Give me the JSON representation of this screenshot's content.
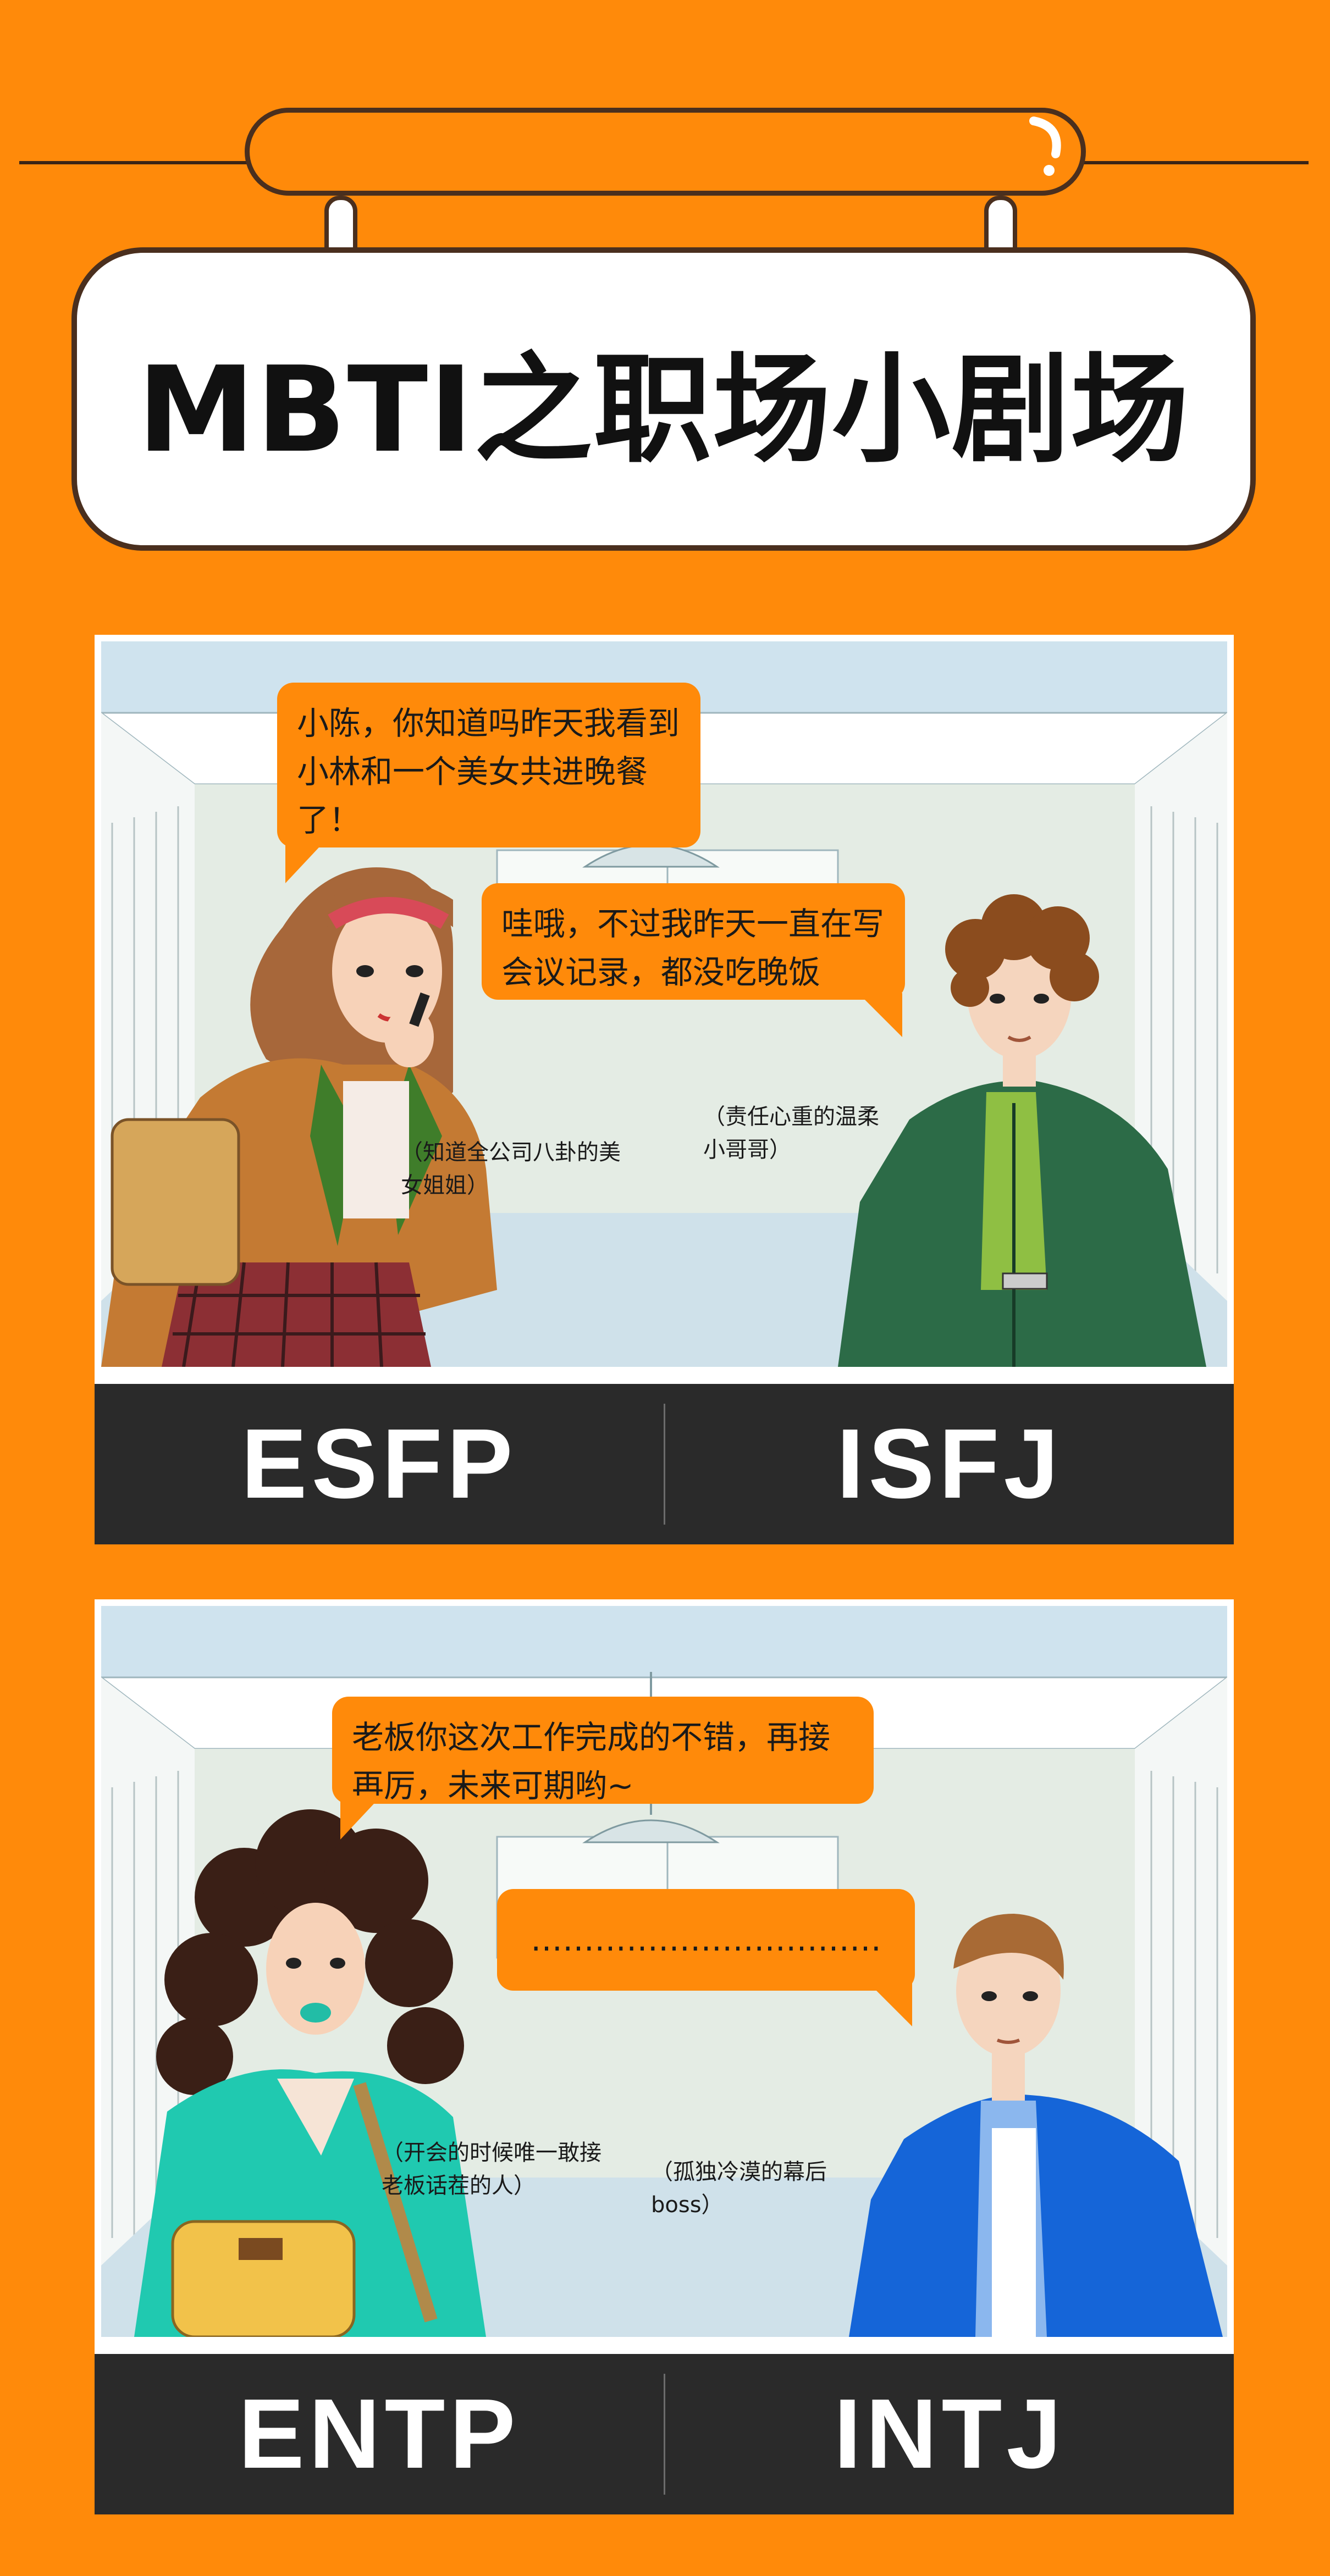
{
  "header": {
    "title": "MBTI之职场小剧场"
  },
  "colors": {
    "background": "#ff8a0a",
    "bubble": "#ff8a0a",
    "type_bar": "#2a2a2a",
    "outline": "#4a2f1e"
  },
  "panels": [
    {
      "bubbles": [
        "小陈，你知道吗昨天我看到小林和一个美女共进晚餐了！",
        "哇哦，不过我昨天一直在写会议记录，都没吃晚饭"
      ],
      "captions": {
        "left": "（知道全公司八卦的美女姐姐）",
        "right": "（责任心重的温柔小哥哥）"
      },
      "types": {
        "left": "ESFP",
        "right": "ISFJ"
      }
    },
    {
      "bubbles": [
        "老板你这次工作完成的不错，再接再厉，未来可期哟~",
        "……………………………"
      ],
      "captions": {
        "left": "（开会的时候唯一敢接老板话茬的人）",
        "right": "（孤独冷漠的幕后boss）"
      },
      "types": {
        "left": "ENTP",
        "right": "INTJ"
      }
    }
  ]
}
